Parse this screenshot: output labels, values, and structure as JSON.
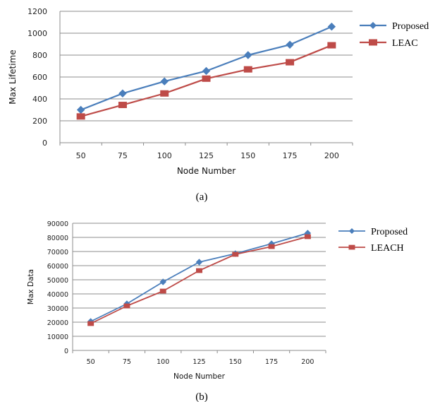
{
  "chart_data": [
    {
      "type": "line",
      "caption": "(a)",
      "xlabel": "Node Number",
      "ylabel": "Max Lifetime",
      "categories": [
        "50",
        "75",
        "100",
        "125",
        "150",
        "175",
        "200"
      ],
      "ylim": [
        0,
        1200
      ],
      "yticks": [
        "0",
        "200",
        "400",
        "600",
        "800",
        "1000",
        "1200"
      ],
      "grid": true,
      "legend": "right",
      "series": [
        {
          "name": "Proposed",
          "color": "#4a7ebb",
          "marker": "diamond",
          "values": [
            300,
            450,
            560,
            655,
            800,
            895,
            1060
          ]
        },
        {
          "name": "LEAC",
          "color": "#be4b48",
          "marker": "square",
          "values": [
            240,
            345,
            450,
            585,
            670,
            735,
            890
          ]
        }
      ]
    },
    {
      "type": "line",
      "caption": "(b)",
      "xlabel": "Node Number",
      "ylabel": "Max Data",
      "categories": [
        "50",
        "75",
        "100",
        "125",
        "150",
        "175",
        "200"
      ],
      "ylim": [
        0,
        90000
      ],
      "yticks": [
        "0",
        "10000",
        "20000",
        "30000",
        "40000",
        "50000",
        "60000",
        "70000",
        "80000",
        "90000"
      ],
      "grid": true,
      "legend": "right",
      "series": [
        {
          "name": "Proposed",
          "color": "#4a7ebb",
          "marker": "diamond",
          "values": [
            20500,
            33000,
            48500,
            62500,
            68500,
            75500,
            83000
          ]
        },
        {
          "name": "LEACH",
          "color": "#be4b48",
          "marker": "square",
          "values": [
            19000,
            31500,
            42000,
            56500,
            68000,
            73500,
            80500
          ]
        }
      ]
    }
  ]
}
